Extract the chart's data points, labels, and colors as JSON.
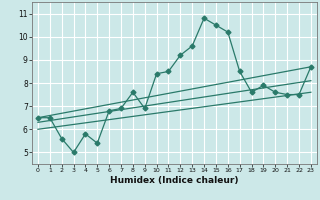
{
  "xlabel": "Humidex (Indice chaleur)",
  "bg_color": "#cce8e8",
  "line_color": "#2a7a6a",
  "grid_color": "#ffffff",
  "xlim": [
    -0.5,
    23.5
  ],
  "ylim": [
    4.5,
    11.5
  ],
  "xticks": [
    0,
    1,
    2,
    3,
    4,
    5,
    6,
    7,
    8,
    9,
    10,
    11,
    12,
    13,
    14,
    15,
    16,
    17,
    18,
    19,
    20,
    21,
    22,
    23
  ],
  "yticks": [
    5,
    6,
    7,
    8,
    9,
    10,
    11
  ],
  "line1_x": [
    0,
    1,
    2,
    3,
    4,
    5,
    6,
    7,
    8,
    9,
    10,
    11,
    12,
    13,
    14,
    15,
    16,
    17,
    18,
    19,
    20,
    21,
    22,
    23
  ],
  "line1_y": [
    6.5,
    6.5,
    5.6,
    5.0,
    5.8,
    5.4,
    6.8,
    6.9,
    7.6,
    6.9,
    8.4,
    8.5,
    9.2,
    9.6,
    10.8,
    10.5,
    10.2,
    8.5,
    7.6,
    7.9,
    7.6,
    7.5,
    7.5,
    8.7
  ],
  "line2_x": [
    0,
    23
  ],
  "line2_y": [
    6.5,
    8.7
  ],
  "line3_x": [
    0,
    23
  ],
  "line3_y": [
    6.3,
    8.1
  ],
  "line4_x": [
    0,
    23
  ],
  "line4_y": [
    6.0,
    7.6
  ],
  "markersize": 2.5,
  "linewidth": 0.9
}
